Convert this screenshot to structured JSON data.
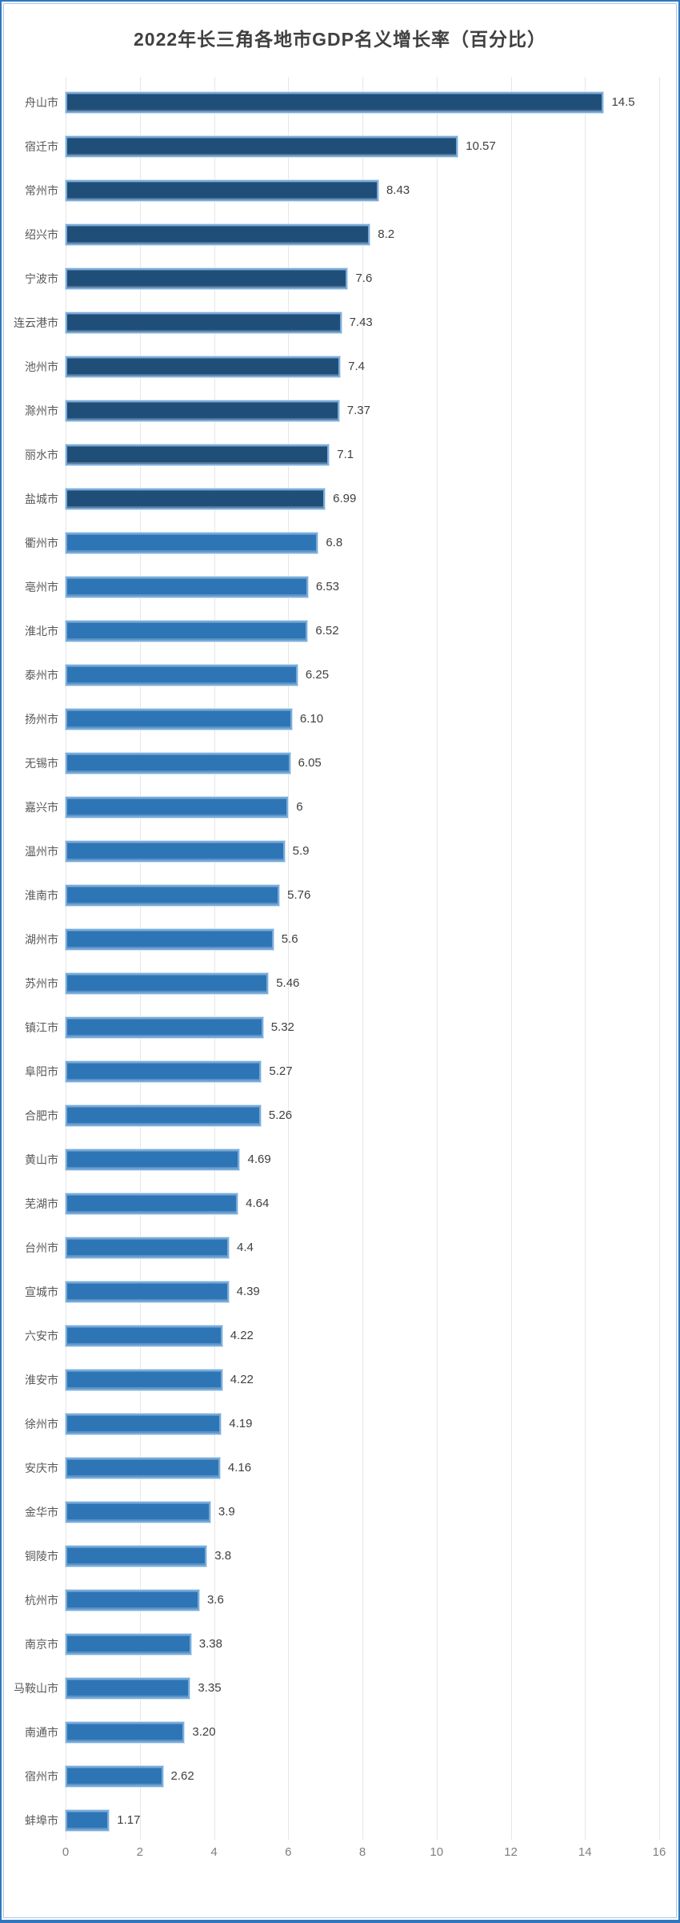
{
  "title": "2022年长三角各地市GDP名义增长率（百分比）",
  "colors": {
    "dark_bar_fill": "#1F4E79",
    "light_bar_fill": "#2E75B6",
    "bar_border": "#79ABD9",
    "bar_outer_line": "#CFE2F3",
    "gridline": "#E7E7E7",
    "frame_outer": "#2F77BE",
    "frame_inner": "#A6C9E9",
    "title_text": "#404040",
    "category_text": "#595959",
    "value_text": "#3F3F3F",
    "axis_text": "#7F7F7F"
  },
  "chart_data": {
    "type": "bar",
    "orientation": "horizontal",
    "title": "2022年长三角各地市GDP名义增长率（百分比）",
    "categories": [
      "舟山市",
      "宿迁市",
      "常州市",
      "绍兴市",
      "宁波市",
      "连云港市",
      "池州市",
      "滁州市",
      "丽水市",
      "盐城市",
      "衢州市",
      "亳州市",
      "淮北市",
      "泰州市",
      "扬州市",
      "无锡市",
      "嘉兴市",
      "温州市",
      "淮南市",
      "湖州市",
      "苏州市",
      "镇江市",
      "阜阳市",
      "合肥市",
      "黄山市",
      "芜湖市",
      "台州市",
      "宣城市",
      "六安市",
      "淮安市",
      "徐州市",
      "安庆市",
      "金华市",
      "铜陵市",
      "杭州市",
      "南京市",
      "马鞍山市",
      "南通市",
      "宿州市",
      "蚌埠市"
    ],
    "values": [
      14.5,
      10.57,
      8.43,
      8.2,
      7.6,
      7.43,
      7.4,
      7.37,
      7.1,
      6.99,
      6.8,
      6.53,
      6.52,
      6.25,
      6.1,
      6.05,
      6,
      5.9,
      5.76,
      5.6,
      5.46,
      5.32,
      5.27,
      5.26,
      4.69,
      4.64,
      4.4,
      4.39,
      4.22,
      4.22,
      4.19,
      4.16,
      3.9,
      3.8,
      3.6,
      3.38,
      3.35,
      3.2,
      2.62,
      1.17
    ],
    "value_labels": [
      "14.5",
      "10.57",
      "8.43",
      "8.2",
      "7.6",
      "7.43",
      "7.4",
      "7.37",
      "7.1",
      "6.99",
      "6.8",
      "6.53",
      "6.52",
      "6.25",
      "6.10",
      "6.05",
      "6",
      "5.9",
      "5.76",
      "5.6",
      "5.46",
      "5.32",
      "5.27",
      "5.26",
      "4.69",
      "4.64",
      "4.4",
      "4.39",
      "4.22",
      "4.22",
      "4.19",
      "4.16",
      "3.9",
      "3.8",
      "3.6",
      "3.38",
      "3.35",
      "3.20",
      "2.62",
      "1.17"
    ],
    "dark_bar_count": 10,
    "xlabel": "",
    "ylabel": "",
    "xlim": [
      0,
      16
    ],
    "x_ticks": [
      "0",
      "2",
      "4",
      "6",
      "8",
      "10",
      "12",
      "14",
      "16"
    ],
    "grid": true,
    "legend": "none"
  }
}
